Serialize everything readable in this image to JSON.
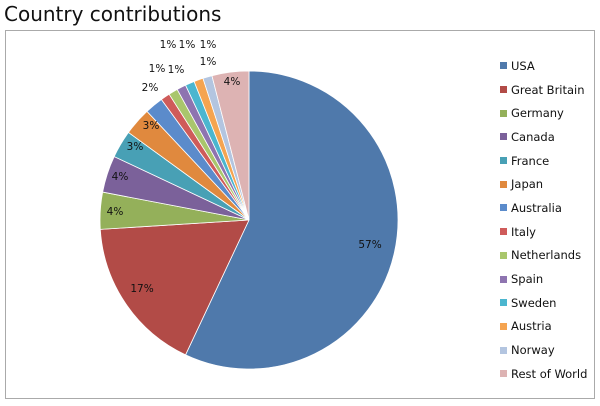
{
  "chart_data": {
    "type": "pie",
    "title": "Country contributions",
    "categories": [
      "USA",
      "Great Britain",
      "Germany",
      "Canada",
      "France",
      "Japan",
      "Australia",
      "Italy",
      "Netherlands",
      "Spain",
      "Sweden",
      "Austria",
      "Norway",
      "Rest of World"
    ],
    "values": [
      57,
      17,
      4,
      4,
      3,
      3,
      2,
      1,
      1,
      1,
      1,
      1,
      1,
      4
    ],
    "labels": [
      "57%",
      "17%",
      "4%",
      "4%",
      "3%",
      "3%",
      "2%",
      "1%",
      "1%",
      "1%",
      "1%",
      "1%",
      "1%",
      "4%"
    ],
    "colors": [
      "#4F79AB",
      "#B24B47",
      "#94B05A",
      "#7B619A",
      "#48A0B5",
      "#E0893E",
      "#5B8BCB",
      "#CF5B5A",
      "#A9C66C",
      "#8E74B0",
      "#4BB6CF",
      "#F5A450",
      "#B3C5E0",
      "#DDB3B3"
    ],
    "legend": "right"
  }
}
